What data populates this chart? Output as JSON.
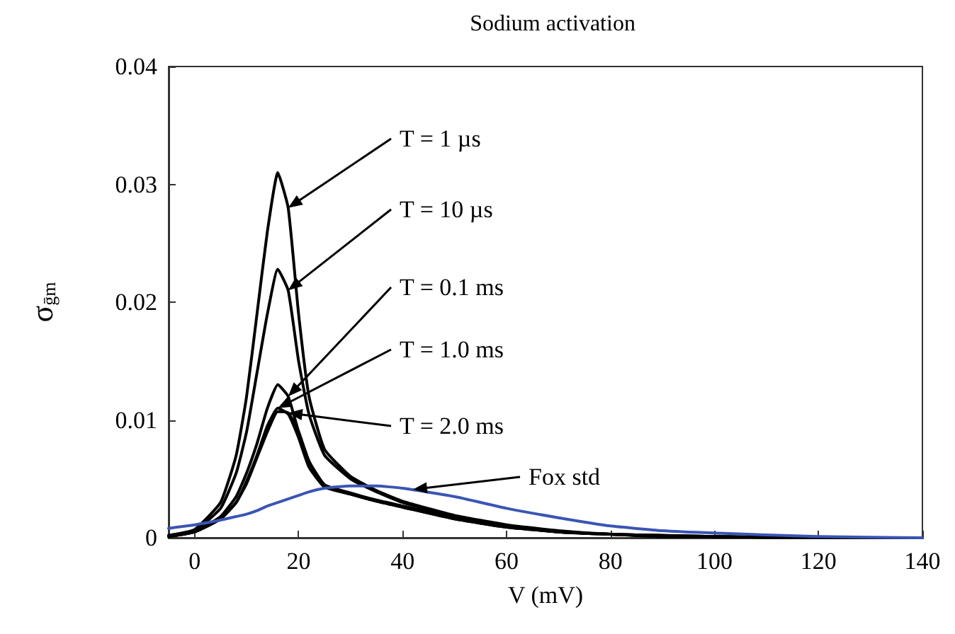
{
  "chart_data": {
    "type": "line",
    "title": "Sodium activation",
    "xlabel": "V (mV)",
    "ylabel": "σ$_{ḡm}$",
    "x": [
      -5,
      0,
      5,
      8,
      10,
      12,
      14,
      16,
      18,
      20,
      22,
      25,
      30,
      35,
      40,
      50,
      60,
      70,
      80,
      90,
      100,
      120,
      140
    ],
    "series": [
      {
        "color": "#000000",
        "values": [
          0.0002,
          0.0007,
          0.003,
          0.007,
          0.012,
          0.019,
          0.026,
          0.031,
          0.028,
          0.019,
          0.012,
          0.0075,
          0.0052,
          0.004,
          0.0031,
          0.0019,
          0.0011,
          0.0006,
          0.0003,
          0.0002,
          0.0001,
          0,
          0
        ]
      },
      {
        "color": "#000000",
        "values": [
          0.0002,
          0.0006,
          0.0025,
          0.0055,
          0.009,
          0.014,
          0.019,
          0.0228,
          0.021,
          0.015,
          0.0105,
          0.007,
          0.005,
          0.0039,
          0.003,
          0.0018,
          0.001,
          0.0005,
          0.0003,
          0.0002,
          0.0001,
          0,
          0
        ]
      },
      {
        "color": "#000000",
        "values": [
          0.0001,
          0.0005,
          0.0018,
          0.0035,
          0.0055,
          0.008,
          0.011,
          0.013,
          0.012,
          0.009,
          0.0065,
          0.0045,
          0.0038,
          0.0032,
          0.0027,
          0.0017,
          0.001,
          0.0005,
          0.0003,
          0.0002,
          0.0001,
          0,
          0
        ]
      },
      {
        "color": "#000000",
        "values": [
          0.0001,
          0.0005,
          0.0016,
          0.003,
          0.0048,
          0.007,
          0.0095,
          0.011,
          0.0105,
          0.0085,
          0.006,
          0.0043,
          0.0037,
          0.0031,
          0.0026,
          0.0016,
          0.0009,
          0.0005,
          0.0003,
          0.0001,
          0.0001,
          0,
          0
        ]
      },
      {
        "color": "#000000",
        "values": [
          0.0001,
          0.0005,
          0.0016,
          0.003,
          0.0046,
          0.0068,
          0.009,
          0.0107,
          0.0106,
          0.009,
          0.0065,
          0.0044,
          0.0037,
          0.0031,
          0.0026,
          0.0016,
          0.0009,
          0.0005,
          0.0003,
          0.0001,
          0.0001,
          0,
          0
        ]
      },
      {
        "color": "#3a55b4",
        "values": [
          0.0008,
          0.0011,
          0.0015,
          0.0018,
          0.002,
          0.0023,
          0.0027,
          0.003,
          0.0033,
          0.0036,
          0.0039,
          0.0042,
          0.0044,
          0.0044,
          0.0042,
          0.0035,
          0.0025,
          0.0017,
          0.001,
          0.0006,
          0.0004,
          0.0001,
          0
        ]
      }
    ],
    "annotations": [
      {
        "text": "T = 1 µs",
        "x": 18,
        "y": 0.028
      },
      {
        "text": "T = 10 µs",
        "x": 18,
        "y": 0.021
      },
      {
        "text": "T = 0.1 ms",
        "x": 18,
        "y": 0.012
      },
      {
        "text": "T = 1.0 ms",
        "x": 16,
        "y": 0.011
      },
      {
        "text": "T = 2.0 ms",
        "x": 18,
        "y": 0.0106
      },
      {
        "text": "Fox std",
        "x": 42,
        "y": 0.0041
      }
    ],
    "xlim": [
      -5,
      140
    ],
    "xticks": [
      0,
      20,
      40,
      60,
      80,
      100,
      120,
      140
    ],
    "ylim": [
      0,
      0.04
    ],
    "yticks": [
      0,
      0.01,
      0.02,
      0.03,
      0.04
    ],
    "grid": false,
    "marker": "none",
    "line_style": "solid"
  }
}
